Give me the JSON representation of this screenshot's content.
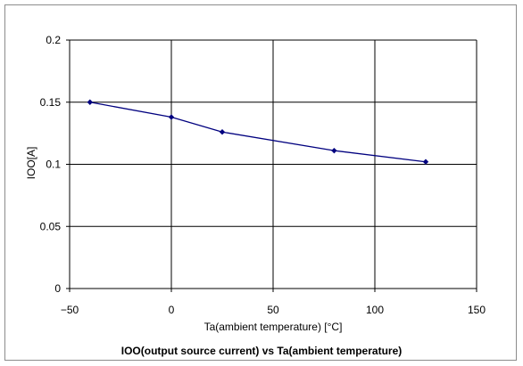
{
  "chart_data": {
    "type": "line",
    "title": "IOO(output source current) vs Ta(ambient temperature)",
    "xlabel": "Ta(ambient temperature)  [°C]",
    "ylabel": "IOO[A]",
    "xlim": [
      -50,
      150
    ],
    "ylim": [
      0,
      0.2
    ],
    "x_ticks": [
      "−50",
      "0",
      "50",
      "100",
      "150"
    ],
    "y_ticks": [
      "0",
      "0.05",
      "0.1",
      "0.15",
      "0.2"
    ],
    "grid": true,
    "legend": "none",
    "series": [
      {
        "color": "#00007f",
        "points": [
          {
            "x": -40,
            "y": 0.15
          },
          {
            "x": 0,
            "y": 0.138
          },
          {
            "x": 25,
            "y": 0.126
          },
          {
            "x": 80,
            "y": 0.111
          },
          {
            "x": 125,
            "y": 0.102
          }
        ]
      }
    ]
  }
}
